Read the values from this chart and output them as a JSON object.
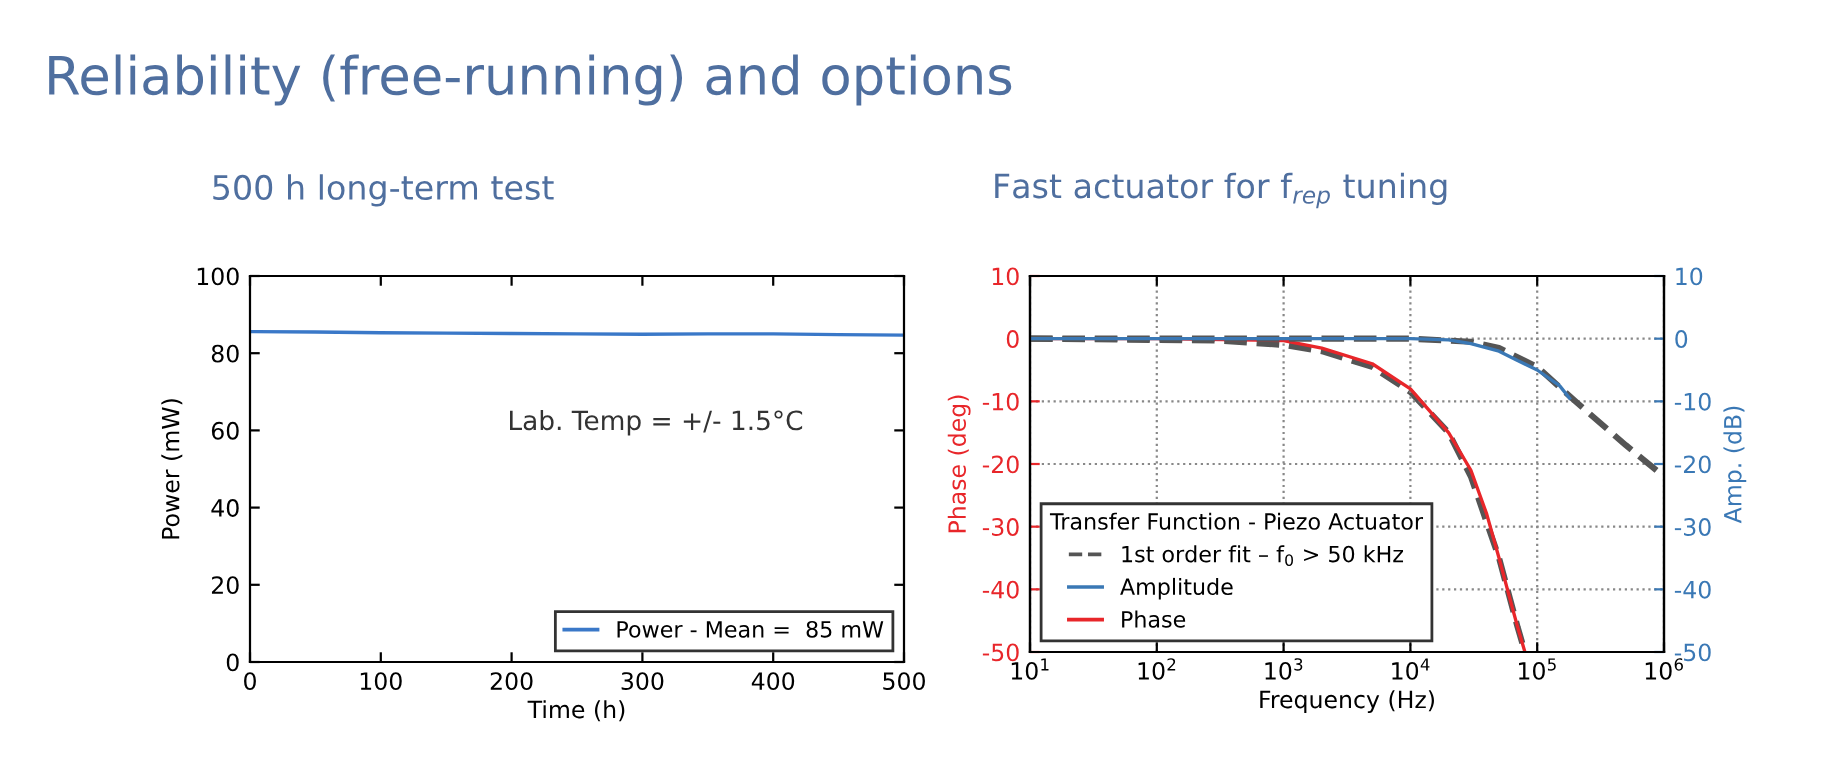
{
  "chart_data": [
    {
      "type": "line",
      "title": "500 h long-term test",
      "xlabel": "Time (h)",
      "ylabel": "Power (mW)",
      "annotations": [
        "Reliability (free-running) and options",
        "Lab. Temp = +/- 1.5°C"
      ],
      "series": [
        {
          "name": "Power - Mean =  85 mW",
          "color": "#3a78c8",
          "x": [
            0,
            50,
            100,
            150,
            200,
            250,
            300,
            350,
            400,
            450,
            500
          ],
          "values": [
            85.6,
            85.5,
            85.3,
            85.2,
            85.1,
            85.0,
            84.9,
            85.0,
            85.0,
            84.8,
            84.7
          ]
        }
      ],
      "xlim": [
        0,
        500
      ],
      "xticks": [
        0,
        100,
        200,
        300,
        400,
        500
      ],
      "ylim": [
        0,
        100
      ],
      "yticks": [
        0,
        20,
        40,
        60,
        80,
        100
      ],
      "grid": false,
      "legend": "bottom right"
    },
    {
      "type": "line",
      "title": "Fast actuator for f$_{rep}$ tuning",
      "xlabel": "Frequency (Hz)",
      "ylabel": "Phase (deg)",
      "y2label": "Amp. (dB)",
      "legend_title": "Transfer Function - Piezo Actuator",
      "log": "x",
      "series": [
        {
          "name": "1st order fit – f$_{0}$ > 50 kHz",
          "color": "#555555",
          "line_style": "dashed",
          "axis": "y",
          "x": [
            10,
            300,
            1000,
            2000,
            5000,
            10000,
            20000,
            30000,
            50000,
            70000,
            80000
          ],
          "values": [
            0,
            -0.3,
            -1,
            -2,
            -4.5,
            -8.5,
            -15,
            -22,
            -35,
            -46,
            -50
          ]
        },
        {
          "name": "Amplitude",
          "color": "#3a78b5",
          "line_style": "solid",
          "axis": "y2",
          "x": [
            10,
            100,
            1000,
            10000,
            20000,
            30000,
            50000,
            70000,
            100000,
            150000,
            180000
          ],
          "values": [
            0,
            0,
            0,
            0,
            -0.2,
            -0.8,
            -2,
            -3.5,
            -5,
            -7.5,
            -9.5
          ]
        },
        {
          "name": "Phase",
          "color": "#e8262a",
          "line_style": "solid",
          "axis": "y",
          "x": [
            10,
            100,
            1000,
            2000,
            5000,
            10000,
            20000,
            30000,
            40000,
            50000,
            60000,
            70000,
            80000
          ],
          "values": [
            0,
            0,
            -0.3,
            -1.5,
            -4,
            -8,
            -15,
            -21,
            -28,
            -35,
            -41,
            -46,
            -50
          ]
        },
        {
          "color": "#555555",
          "line_style": "dashed",
          "axis": "y2",
          "x": [
            10,
            10000,
            30000,
            50000,
            100000,
            200000,
            500000,
            1000000
          ],
          "values": [
            0,
            0,
            -0.5,
            -1.5,
            -4.5,
            -10,
            -17,
            -22
          ]
        }
      ],
      "xlim": [
        10,
        1000000
      ],
      "xticks": [
        {
          "value": 10,
          "label": "10$^{1}$"
        },
        {
          "value": 100,
          "label": "10$^{2}$"
        },
        {
          "value": 1000,
          "label": "10$^{3}$"
        },
        {
          "value": 10000,
          "label": "10$^{4}$"
        },
        {
          "value": 100000,
          "label": "10$^{5}$"
        },
        {
          "value": 1000000,
          "label": "10$^{6}$"
        }
      ],
      "ylim": [
        -50,
        10
      ],
      "yticks": [
        -50,
        -40,
        -30,
        -20,
        -10,
        0,
        10
      ],
      "y2lim": [
        -50,
        10
      ],
      "y2ticks": [
        -50,
        -40,
        -30,
        -20,
        -10,
        0,
        10
      ],
      "grid": true,
      "legend": "bottom left"
    }
  ]
}
